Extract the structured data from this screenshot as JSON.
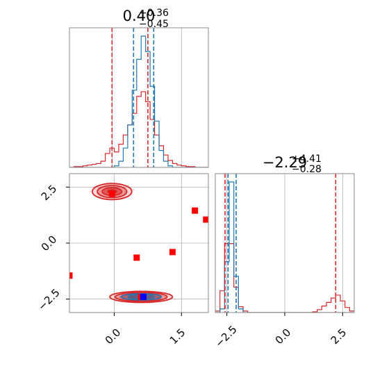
{
  "chart_data": {
    "type": "corner",
    "title_left": {
      "main": "0.40",
      "sup": "+0.36",
      "sub": "−0.45"
    },
    "title_right": {
      "main": "−2.29",
      "sup": "+4.41",
      "sub": "−0.28"
    },
    "colors": {
      "red": "#d62728",
      "blue": "#1f77b4",
      "marker_red": "#ff0000",
      "marker_blue": "#0000ff",
      "grid": "#b0b0b0"
    },
    "x1_axis": {
      "range": [
        -1.0,
        2.1
      ],
      "ticks": [
        0.0,
        1.5
      ],
      "tick_labels": [
        "0.0",
        "1.5"
      ],
      "grid": [
        0.0,
        1.5
      ],
      "extra_gridline": -0.05
    },
    "x2_axis": {
      "range": [
        -3.0,
        3.0
      ],
      "ticks": [
        -2.5,
        0.0,
        2.5
      ],
      "tick_labels": [
        "−2.5",
        "0.0",
        "2.5"
      ]
    },
    "y_axis": {
      "range": [
        -3.1,
        3.1
      ],
      "ticks": [
        2.5,
        0.0,
        -2.5
      ],
      "tick_labels": [
        "2.5",
        "0.0",
        "−2.5"
      ]
    },
    "hist_x1": {
      "red": {
        "bin_edges": [
          -1.0,
          -0.9,
          -0.8,
          -0.7,
          -0.6,
          -0.5,
          -0.4,
          -0.3,
          -0.2,
          -0.1,
          0.0,
          0.1,
          0.2,
          0.3,
          0.4,
          0.5,
          0.6,
          0.7,
          0.8,
          0.9,
          1.0,
          1.1,
          1.2,
          1.3,
          1.4,
          1.5,
          1.6,
          1.7,
          1.8,
          1.9,
          2.0,
          2.1
        ],
        "counts": [
          0,
          1,
          1,
          2,
          3,
          4,
          5,
          8,
          18,
          25,
          20,
          30,
          42,
          55,
          70,
          92,
          98,
          85,
          62,
          42,
          28,
          16,
          9,
          5,
          3,
          2,
          1,
          1,
          0,
          0,
          0
        ]
      },
      "blue": {
        "bin_edges": [
          -1.0,
          -0.9,
          -0.8,
          -0.7,
          -0.6,
          -0.5,
          -0.4,
          -0.3,
          -0.2,
          -0.1,
          0.0,
          0.1,
          0.2,
          0.3,
          0.4,
          0.5,
          0.6,
          0.7,
          0.8,
          0.9,
          1.0,
          1.1,
          1.2,
          1.3,
          1.4,
          1.5,
          1.6,
          1.7,
          1.8,
          1.9,
          2.0,
          2.1
        ],
        "counts": [
          0,
          0,
          0,
          0,
          0,
          0,
          0,
          0,
          0,
          0,
          2,
          8,
          25,
          55,
          100,
          140,
          170,
          150,
          105,
          60,
          22,
          8,
          2,
          0,
          0,
          0,
          0,
          0,
          0,
          0,
          0
        ]
      },
      "red_quantiles": [
        -0.05,
        0.75
      ],
      "blue_quantiles": [
        0.43,
        0.88
      ]
    },
    "hist_x2": {
      "red": {
        "bin_edges": [
          -3.0,
          -2.8,
          -2.6,
          -2.4,
          -2.2,
          -2.0,
          -1.8,
          -1.6,
          -1.4,
          -1.2,
          -1.0,
          -0.8,
          -0.6,
          -0.4,
          -0.2,
          0.0,
          0.2,
          0.4,
          0.6,
          0.8,
          1.0,
          1.2,
          1.4,
          1.6,
          1.8,
          2.0,
          2.2,
          2.4,
          2.6,
          2.8,
          3.0
        ],
        "counts": [
          2,
          30,
          95,
          95,
          35,
          8,
          2,
          0,
          0,
          0,
          0,
          0,
          0,
          0,
          0,
          0,
          0,
          0,
          0,
          0,
          0,
          1,
          4,
          9,
          14,
          20,
          24,
          16,
          7,
          2
        ]
      },
      "blue": {
        "bin_edges": [
          -3.0,
          -2.8,
          -2.6,
          -2.4,
          -2.2,
          -2.0,
          -1.8,
          -1.6,
          -1.4,
          -1.2,
          -1.0,
          -0.8,
          -0.6,
          -0.4,
          -0.2,
          0.0,
          0.2,
          0.4,
          0.6,
          0.8,
          1.0,
          1.2,
          1.4,
          1.6,
          1.8,
          2.0,
          2.2,
          2.4,
          2.6,
          2.8,
          3.0
        ],
        "counts": [
          0,
          5,
          70,
          180,
          50,
          5,
          0,
          0,
          0,
          0,
          0,
          0,
          0,
          0,
          0,
          0,
          0,
          0,
          0,
          0,
          0,
          0,
          0,
          0,
          0,
          0,
          0,
          0,
          0,
          0
        ]
      },
      "red_quantiles": [
        -2.58,
        2.2
      ],
      "blue_quantiles": [
        -2.45,
        -2.1
      ]
    },
    "scatter": {
      "red_contours": [
        {
          "center": [
            -0.05,
            2.3
          ],
          "levels": [
            [
              0.44,
              0.36
            ],
            [
              0.33,
              0.27
            ],
            [
              0.22,
              0.17
            ],
            [
              0.1,
              0.08
            ]
          ]
        },
        {
          "center": [
            0.6,
            -2.4
          ],
          "levels": [
            [
              0.7,
              0.25
            ],
            [
              0.58,
              0.2
            ],
            [
              0.45,
              0.15
            ],
            [
              0.25,
              0.08
            ]
          ]
        }
      ],
      "blue_contours": [
        {
          "center": [
            0.6,
            -2.4
          ],
          "levels": [
            [
              0.45,
              0.14
            ],
            [
              0.3,
              0.1
            ]
          ]
        }
      ],
      "red_markers": [
        [
          -0.05,
          2.2
        ],
        [
          1.8,
          1.45
        ],
        [
          2.05,
          1.05
        ],
        [
          1.3,
          -0.4
        ],
        [
          0.5,
          -0.65
        ],
        [
          -1.0,
          -1.45
        ],
        [
          0.6,
          -2.4
        ]
      ],
      "blue_markers": [
        [
          0.65,
          -2.4
        ]
      ]
    }
  }
}
